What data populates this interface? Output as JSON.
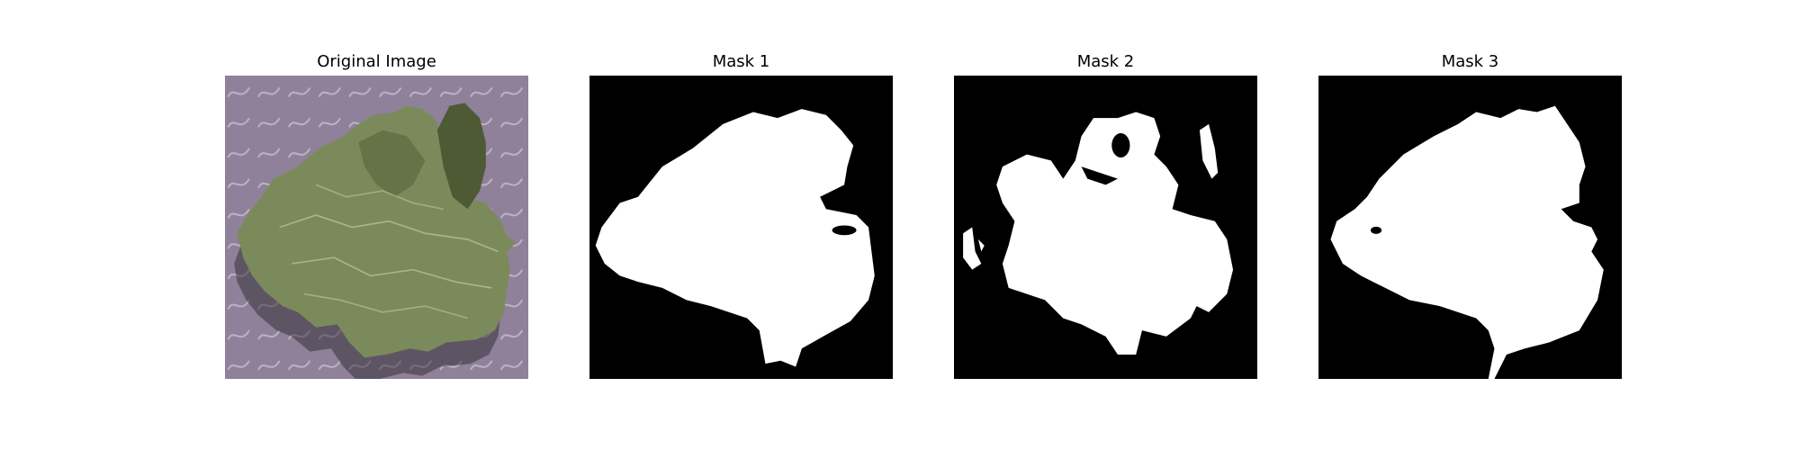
{
  "panels": [
    {
      "title": "Original Image"
    },
    {
      "title": "Mask 1"
    },
    {
      "title": "Mask 2"
    },
    {
      "title": "Mask 3"
    }
  ],
  "colors": {
    "background": "#ffffff",
    "mask_background": "#000000",
    "mask_foreground": "#ffffff",
    "cloth": "#8f8199",
    "leaf": "#7b8a5a",
    "leaf_dark": "#4e5a34"
  }
}
